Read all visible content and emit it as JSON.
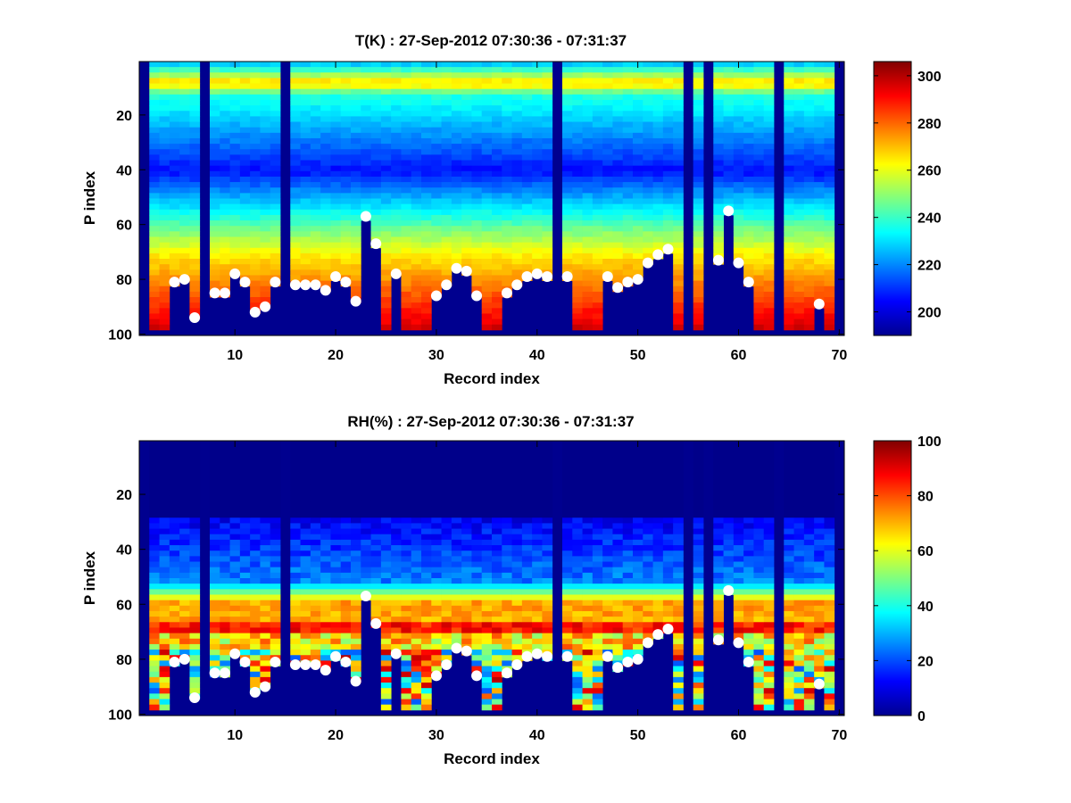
{
  "chart_data": [
    {
      "type": "heatmap",
      "title": "T(K) : 27-Sep-2012 07:30:36 - 07:31:37",
      "xlabel": "Record index",
      "ylabel": "P index",
      "xlim": [
        0.5,
        70.5
      ],
      "ylim": [
        0.5,
        100.5
      ],
      "y_reversed": true,
      "xticks": [
        10,
        20,
        30,
        40,
        50,
        60,
        70
      ],
      "yticks": [
        20,
        40,
        60,
        80,
        100
      ],
      "colormap": "jet",
      "clim": [
        190,
        306
      ],
      "colorbar_ticks": [
        200,
        220,
        240,
        260,
        280,
        300
      ],
      "profile_shape": "cold minimum (~205 K) near P 40, warm band (~270 K) near P 8, warming to ~290-300 K toward P 100",
      "empty_records": [
        1,
        7,
        15,
        42,
        55,
        57,
        64,
        70
      ]
    },
    {
      "type": "heatmap",
      "title": "RH(%) : 27-Sep-2012 07:30:36 - 07:31:37",
      "xlabel": "Record index",
      "ylabel": "P index",
      "xlim": [
        0.5,
        70.5
      ],
      "ylim": [
        0.5,
        100.5
      ],
      "y_reversed": true,
      "xticks": [
        10,
        20,
        30,
        40,
        50,
        60,
        70
      ],
      "yticks": [
        20,
        40,
        60,
        80,
        100
      ],
      "colormap": "jet",
      "clim": [
        0,
        100
      ],
      "colorbar_ticks": [
        0,
        20,
        40,
        60,
        80,
        100
      ],
      "profile_shape": "near 0% above P 30, moist band 60-80% between P 55 and 75, patchy high humidity near surface",
      "empty_records": [
        1,
        7,
        15,
        42,
        55,
        57,
        64,
        70
      ]
    }
  ],
  "surface_markers": {
    "name": "surface pressure index",
    "x": [
      4,
      5,
      6,
      8,
      9,
      10,
      11,
      12,
      13,
      14,
      16,
      17,
      18,
      19,
      20,
      21,
      22,
      23,
      24,
      26,
      30,
      31,
      32,
      33,
      34,
      37,
      38,
      39,
      40,
      41,
      43,
      47,
      48,
      49,
      50,
      51,
      52,
      53,
      58,
      59,
      60,
      61,
      68
    ],
    "y": [
      81,
      80,
      94,
      85,
      85,
      78,
      81,
      92,
      90,
      81,
      82,
      82,
      82,
      84,
      79,
      81,
      88,
      57,
      67,
      78,
      86,
      82,
      76,
      77,
      86,
      85,
      82,
      79,
      78,
      79,
      79,
      79,
      83,
      81,
      80,
      74,
      71,
      69,
      73,
      55,
      74,
      81,
      89
    ]
  }
}
